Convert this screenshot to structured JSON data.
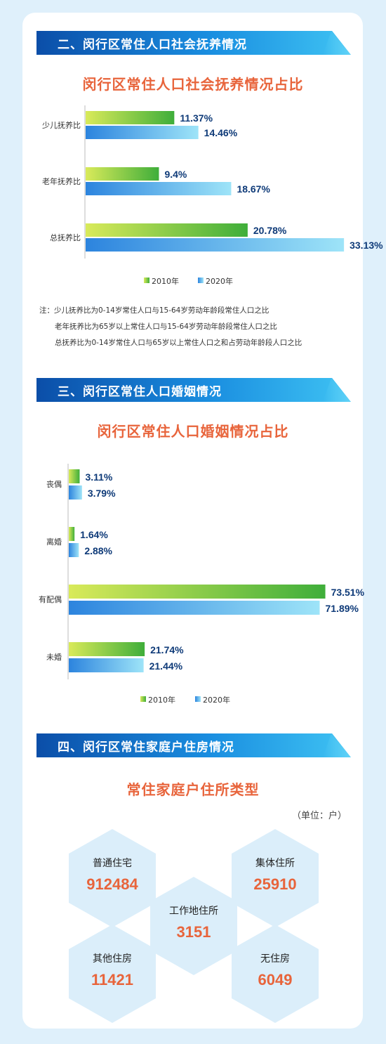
{
  "sections": {
    "dependency": {
      "banner": "二、闵行区常住人口社会抚养情况",
      "title": "闵行区常住人口社会抚养情况占比",
      "notes": [
        "注：少儿抚养比为0-14岁常住人口与15-64岁劳动年龄段常住人口之比",
        "老年抚养比为65岁以上常住人口与15-64岁劳动年龄段常住人口之比",
        "总抚养比为0-14岁常住人口与65岁以上常住人口之和占劳动年龄段人口之比"
      ]
    },
    "marriage": {
      "banner": "三、闵行区常住人口婚姻情况",
      "title": "闵行区常住人口婚姻情况占比"
    },
    "housing": {
      "banner": "四、闵行区常住家庭户住房情况",
      "title": "常住家庭户住所类型",
      "unit": "（单位：户）",
      "items": [
        {
          "label": "普通住宅",
          "value": "912484"
        },
        {
          "label": "集体住所",
          "value": "25910"
        },
        {
          "label": "工作地住所",
          "value": "3151"
        },
        {
          "label": "其他住房",
          "value": "11421"
        },
        {
          "label": "无住房",
          "value": "6049"
        }
      ]
    }
  },
  "colors": {
    "series_2010": "#8cc83c",
    "series_2020": "#2b8be0",
    "value_label": "#0e3a78",
    "title": "#e8643b"
  },
  "chart_data": [
    {
      "type": "bar",
      "orientation": "horizontal",
      "title": "闵行区常住人口社会抚养情况占比",
      "categories": [
        "少儿抚养比",
        "老年抚养比",
        "总抚养比"
      ],
      "series": [
        {
          "name": "2010年",
          "values": [
            11.37,
            9.4,
            20.78
          ],
          "labels": [
            "11.37%",
            "9.4%",
            "20.78%"
          ]
        },
        {
          "name": "2020年",
          "values": [
            14.46,
            18.67,
            33.13
          ],
          "labels": [
            "14.46%",
            "18.67%",
            "33.13%"
          ]
        }
      ],
      "xlim": [
        0,
        36
      ],
      "legend": "bottom",
      "grid": false
    },
    {
      "type": "bar",
      "orientation": "horizontal",
      "title": "闵行区常住人口婚姻情况占比",
      "categories": [
        "丧偶",
        "离婚",
        "有配偶",
        "未婚"
      ],
      "series": [
        {
          "name": "2010年",
          "values": [
            3.11,
            1.64,
            73.51,
            21.74
          ],
          "labels": [
            "3.11%",
            "1.64%",
            "73.51%",
            "21.74%"
          ]
        },
        {
          "name": "2020年",
          "values": [
            3.79,
            2.88,
            71.89,
            21.44
          ],
          "labels": [
            "3.79%",
            "2.88%",
            "71.89%",
            "21.44%"
          ]
        }
      ],
      "xlim": [
        0,
        74
      ],
      "legend": "bottom",
      "grid": false
    }
  ]
}
